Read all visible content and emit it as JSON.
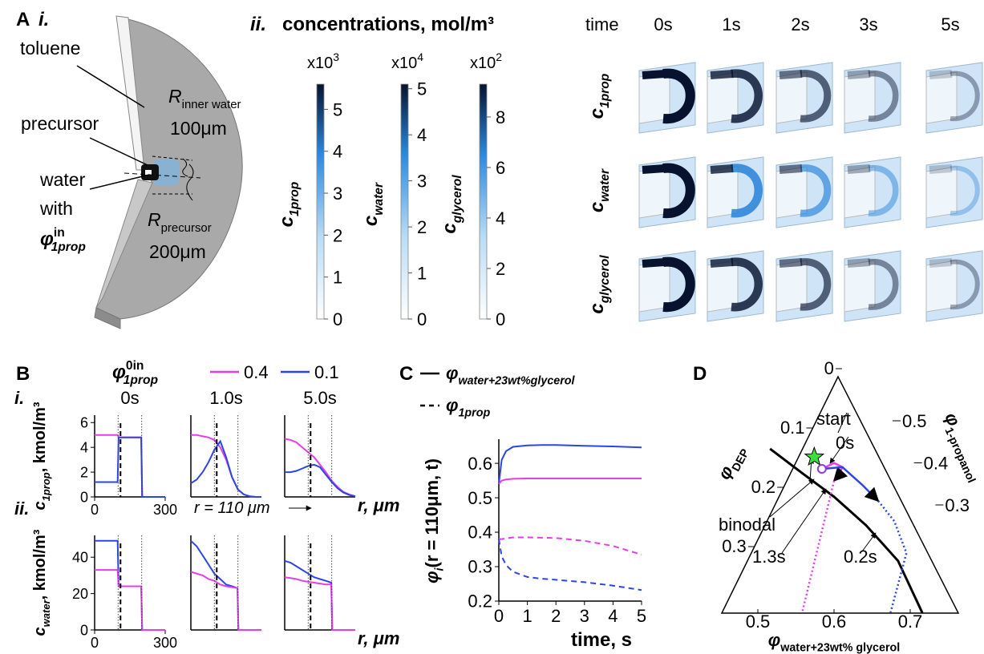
{
  "panel_a": {
    "label": "A",
    "i": {
      "label": "i.",
      "toluene": "toluene",
      "precursor": "precursor",
      "water": "water",
      "with": "with",
      "phi": {
        "symbol": "φ",
        "sup": "in",
        "sub": "1prop"
      },
      "r_inner": {
        "symbol": "R",
        "sub": "inner water"
      },
      "r_inner_value": "100μm",
      "r_precursor": {
        "symbol": "R",
        "sub": "precursor"
      },
      "r_precursor_value": "200μm"
    },
    "ii": {
      "label": "ii.",
      "title": "concentrations, mol/m³"
    },
    "iii": {
      "time_label": "time",
      "times": [
        "0s",
        "1s",
        "2s",
        "3s",
        "5s"
      ],
      "rows": [
        {
          "symbol": "c",
          "sub": "1prop"
        },
        {
          "symbol": "c",
          "sub": "water"
        },
        {
          "symbol": "c",
          "sub": "glycerol"
        }
      ]
    }
  },
  "panel_b": {
    "label": "B",
    "rows": [
      "i.",
      "ii."
    ],
    "legend": {
      "title": {
        "symbol": "φ",
        "sup": "0in",
        "sub": "1prop"
      },
      "entries": [
        {
          "name": "0.4",
          "color": "#e63ce6"
        },
        {
          "name": "0.1",
          "color": "#2b45e8"
        }
      ]
    },
    "y_labels": [
      {
        "symbol": "c",
        "sub": "1prop",
        "unit": ", kmol/m³"
      },
      {
        "symbol": "c",
        "sub": "water",
        "unit": ", kmol/m³"
      }
    ],
    "x_label": "r, μm",
    "annotation": "r = 110 μm",
    "dotted_x": [
      100,
      200
    ],
    "dashed_x": 110
  },
  "panel_c": {
    "label": "C",
    "legend": [
      {
        "symbol": "φ",
        "sub": "water+23wt%glycerol",
        "dashed": false
      },
      {
        "symbol": "φ",
        "sub": "1prop",
        "dashed": true
      }
    ]
  },
  "panel_d": {
    "label": "D",
    "annotations": [
      "start",
      "0s",
      "binodal",
      "1.3s",
      "0.2s"
    ]
  },
  "chart_data": [
    {
      "type": "colorbar",
      "label": {
        "symbol": "c",
        "sub": "1prop"
      },
      "multiplier": {
        "base": "x10",
        "exp": "3"
      },
      "ylim": [
        0,
        5.6
      ],
      "yticks": [
        0,
        1,
        2,
        3,
        4,
        5
      ]
    },
    {
      "type": "colorbar",
      "label": {
        "symbol": "c",
        "sub": "water"
      },
      "multiplier": {
        "base": "x10",
        "exp": "4"
      },
      "ylim": [
        0,
        5.1
      ],
      "yticks": [
        0,
        1,
        2,
        3,
        4,
        5
      ]
    },
    {
      "type": "colorbar",
      "label": {
        "symbol": "c",
        "sub": "glycerol"
      },
      "multiplier": {
        "base": "x10",
        "exp": "2"
      },
      "ylim": [
        0,
        9.3
      ],
      "yticks": [
        0,
        2,
        4,
        6,
        8
      ]
    },
    {
      "type": "line",
      "title": "0s",
      "x": [
        0,
        98,
        102,
        198,
        202,
        300
      ],
      "series": [
        {
          "color": "#e63ce6",
          "values": [
            5,
            5,
            4.8,
            4.8,
            0,
            0
          ]
        },
        {
          "color": "#2b45e8",
          "values": [
            1.2,
            1.2,
            4.8,
            4.8,
            0,
            0
          ]
        }
      ],
      "xlim": [
        0,
        300
      ],
      "ylim": [
        0,
        6.6
      ],
      "xticks": [
        0,
        300
      ],
      "yticks": [
        0,
        2,
        4,
        6
      ]
    },
    {
      "type": "line",
      "title": "1.0s",
      "x": [
        0,
        25,
        50,
        75,
        100,
        125,
        150,
        175,
        200,
        225,
        250,
        275,
        300
      ],
      "series": [
        {
          "color": "#e63ce6",
          "values": [
            5,
            5,
            4.9,
            4.8,
            4.6,
            4.0,
            3.0,
            1.6,
            0.6,
            0.2,
            0.05,
            0,
            0
          ]
        },
        {
          "color": "#2b45e8",
          "values": [
            1.1,
            1.4,
            2.0,
            2.8,
            3.8,
            4.5,
            3.2,
            1.6,
            0.6,
            0.2,
            0.05,
            0,
            0
          ]
        }
      ],
      "xlim": [
        0,
        300
      ],
      "ylim": [
        0,
        6.6
      ]
    },
    {
      "type": "line",
      "title": "5.0s",
      "x": [
        0,
        25,
        50,
        75,
        100,
        125,
        150,
        175,
        200,
        225,
        250,
        275,
        300
      ],
      "series": [
        {
          "color": "#e63ce6",
          "values": [
            4.7,
            4.6,
            4.4,
            4.0,
            3.6,
            3.2,
            2.6,
            2.0,
            1.3,
            0.8,
            0.4,
            0.2,
            0.05
          ]
        },
        {
          "color": "#2b45e8",
          "values": [
            2.0,
            2.0,
            2.1,
            2.3,
            2.5,
            2.6,
            2.4,
            1.8,
            1.2,
            0.7,
            0.35,
            0.15,
            0.05
          ]
        }
      ],
      "xlim": [
        0,
        300
      ],
      "ylim": [
        0,
        6.6
      ]
    },
    {
      "type": "line",
      "x": [
        0,
        98,
        102,
        198,
        202,
        300
      ],
      "series": [
        {
          "color": "#2b45e8",
          "values": [
            49,
            49,
            24,
            24,
            0,
            0
          ]
        },
        {
          "color": "#e63ce6",
          "values": [
            33,
            33,
            24,
            24,
            0,
            0
          ]
        }
      ],
      "xlim": [
        0,
        300
      ],
      "ylim": [
        0,
        52
      ],
      "xticks": [
        0,
        300
      ],
      "yticks": [
        0,
        20,
        40
      ]
    },
    {
      "type": "line",
      "x": [
        0,
        25,
        50,
        75,
        100,
        125,
        150,
        175,
        198,
        202,
        300
      ],
      "series": [
        {
          "color": "#2b45e8",
          "values": [
            49,
            46,
            41,
            36,
            31,
            28,
            25,
            24,
            23,
            0,
            0
          ]
        },
        {
          "color": "#e63ce6",
          "values": [
            32,
            31,
            30,
            28,
            27,
            25,
            24,
            23.5,
            23,
            0,
            0
          ]
        }
      ],
      "xlim": [
        0,
        300
      ],
      "ylim": [
        0,
        52
      ]
    },
    {
      "type": "line",
      "x": [
        0,
        25,
        50,
        75,
        100,
        125,
        150,
        175,
        198,
        202,
        300
      ],
      "series": [
        {
          "color": "#2b45e8",
          "values": [
            38,
            37,
            35,
            33,
            31,
            29,
            28,
            27,
            26,
            0,
            0
          ]
        },
        {
          "color": "#e63ce6",
          "values": [
            29,
            28.5,
            28,
            27,
            26.5,
            26,
            25.5,
            25,
            25,
            0,
            0
          ]
        }
      ],
      "xlim": [
        0,
        300
      ],
      "ylim": [
        0,
        52
      ]
    },
    {
      "type": "line",
      "x": [
        0,
        0.1,
        0.25,
        0.5,
        1,
        1.5,
        2,
        3,
        4,
        5
      ],
      "series": [
        {
          "color": "#2b45e8",
          "dashed": false,
          "values": [
            0.54,
            0.61,
            0.635,
            0.648,
            0.652,
            0.653,
            0.653,
            0.651,
            0.649,
            0.646
          ]
        },
        {
          "color": "#e63ce6",
          "dashed": false,
          "values": [
            0.54,
            0.55,
            0.553,
            0.555,
            0.556,
            0.556,
            0.556,
            0.556,
            0.556,
            0.556
          ]
        },
        {
          "color": "#e63ce6",
          "dashed": true,
          "values": [
            0.38,
            0.38,
            0.382,
            0.385,
            0.385,
            0.384,
            0.383,
            0.375,
            0.36,
            0.335
          ]
        },
        {
          "color": "#2b45e8",
          "dashed": true,
          "values": [
            0.38,
            0.33,
            0.305,
            0.285,
            0.27,
            0.265,
            0.262,
            0.255,
            0.245,
            0.232
          ]
        }
      ],
      "xlim": [
        0,
        5
      ],
      "ylim": [
        0.2,
        0.67
      ],
      "xticks": [
        0,
        1,
        2,
        3,
        4,
        5
      ],
      "yticks": [
        0.2,
        0.3,
        0.4,
        0.5,
        0.6
      ],
      "x_label": "time, s",
      "y_label": {
        "symbol": "φ",
        "sub": "i",
        "rest": "(r = 110μm, t)"
      }
    },
    {
      "type": "ternary",
      "left_axis": {
        "label": {
          "symbol": "φ",
          "sub": "DEP"
        },
        "ticks": [
          0,
          0.1,
          0.2,
          0.3
        ]
      },
      "right_axis": {
        "label": {
          "symbol": "φ",
          "sub": "1-propanol"
        },
        "ticks": [
          0.5,
          0.4,
          0.3
        ]
      },
      "bottom_axis": {
        "label": {
          "symbol": "φ",
          "sub": "water+23wt% glycerol"
        },
        "ticks": [
          0.5,
          0.6,
          0.7
        ]
      },
      "curves": [
        {
          "color": "#000000",
          "style": "solid",
          "water": [
            0.516,
            0.558,
            0.6,
            0.642,
            0.684,
            0.716
          ],
          "dep": [
            0.135,
            0.176,
            0.216,
            0.264,
            0.324,
            0.412
          ]
        },
        {
          "color": "#e63ce6",
          "style": "solid",
          "water": [
            0.584,
            0.6,
            0.611,
            0.605,
            0.6
          ],
          "dep": [
            0.169,
            0.159,
            0.166,
            0.182,
            0.189
          ]
        },
        {
          "color": "#e63ce6",
          "style": "dotted",
          "water": [
            0.6,
            0.558
          ],
          "dep": [
            0.189,
            0.412
          ]
        },
        {
          "color": "#2b45e8",
          "style": "solid",
          "water": [
            0.584,
            0.611,
            0.637,
            0.658
          ],
          "dep": [
            0.169,
            0.166,
            0.196,
            0.223
          ]
        },
        {
          "color": "#2b45e8",
          "style": "dotted",
          "water": [
            0.658,
            0.679,
            0.695,
            0.674
          ],
          "dep": [
            0.223,
            0.257,
            0.311,
            0.412
          ]
        }
      ],
      "star": {
        "water": 0.574,
        "dep": 0.149
      },
      "start": {
        "water": 0.584,
        "dep": 0.169
      }
    }
  ]
}
